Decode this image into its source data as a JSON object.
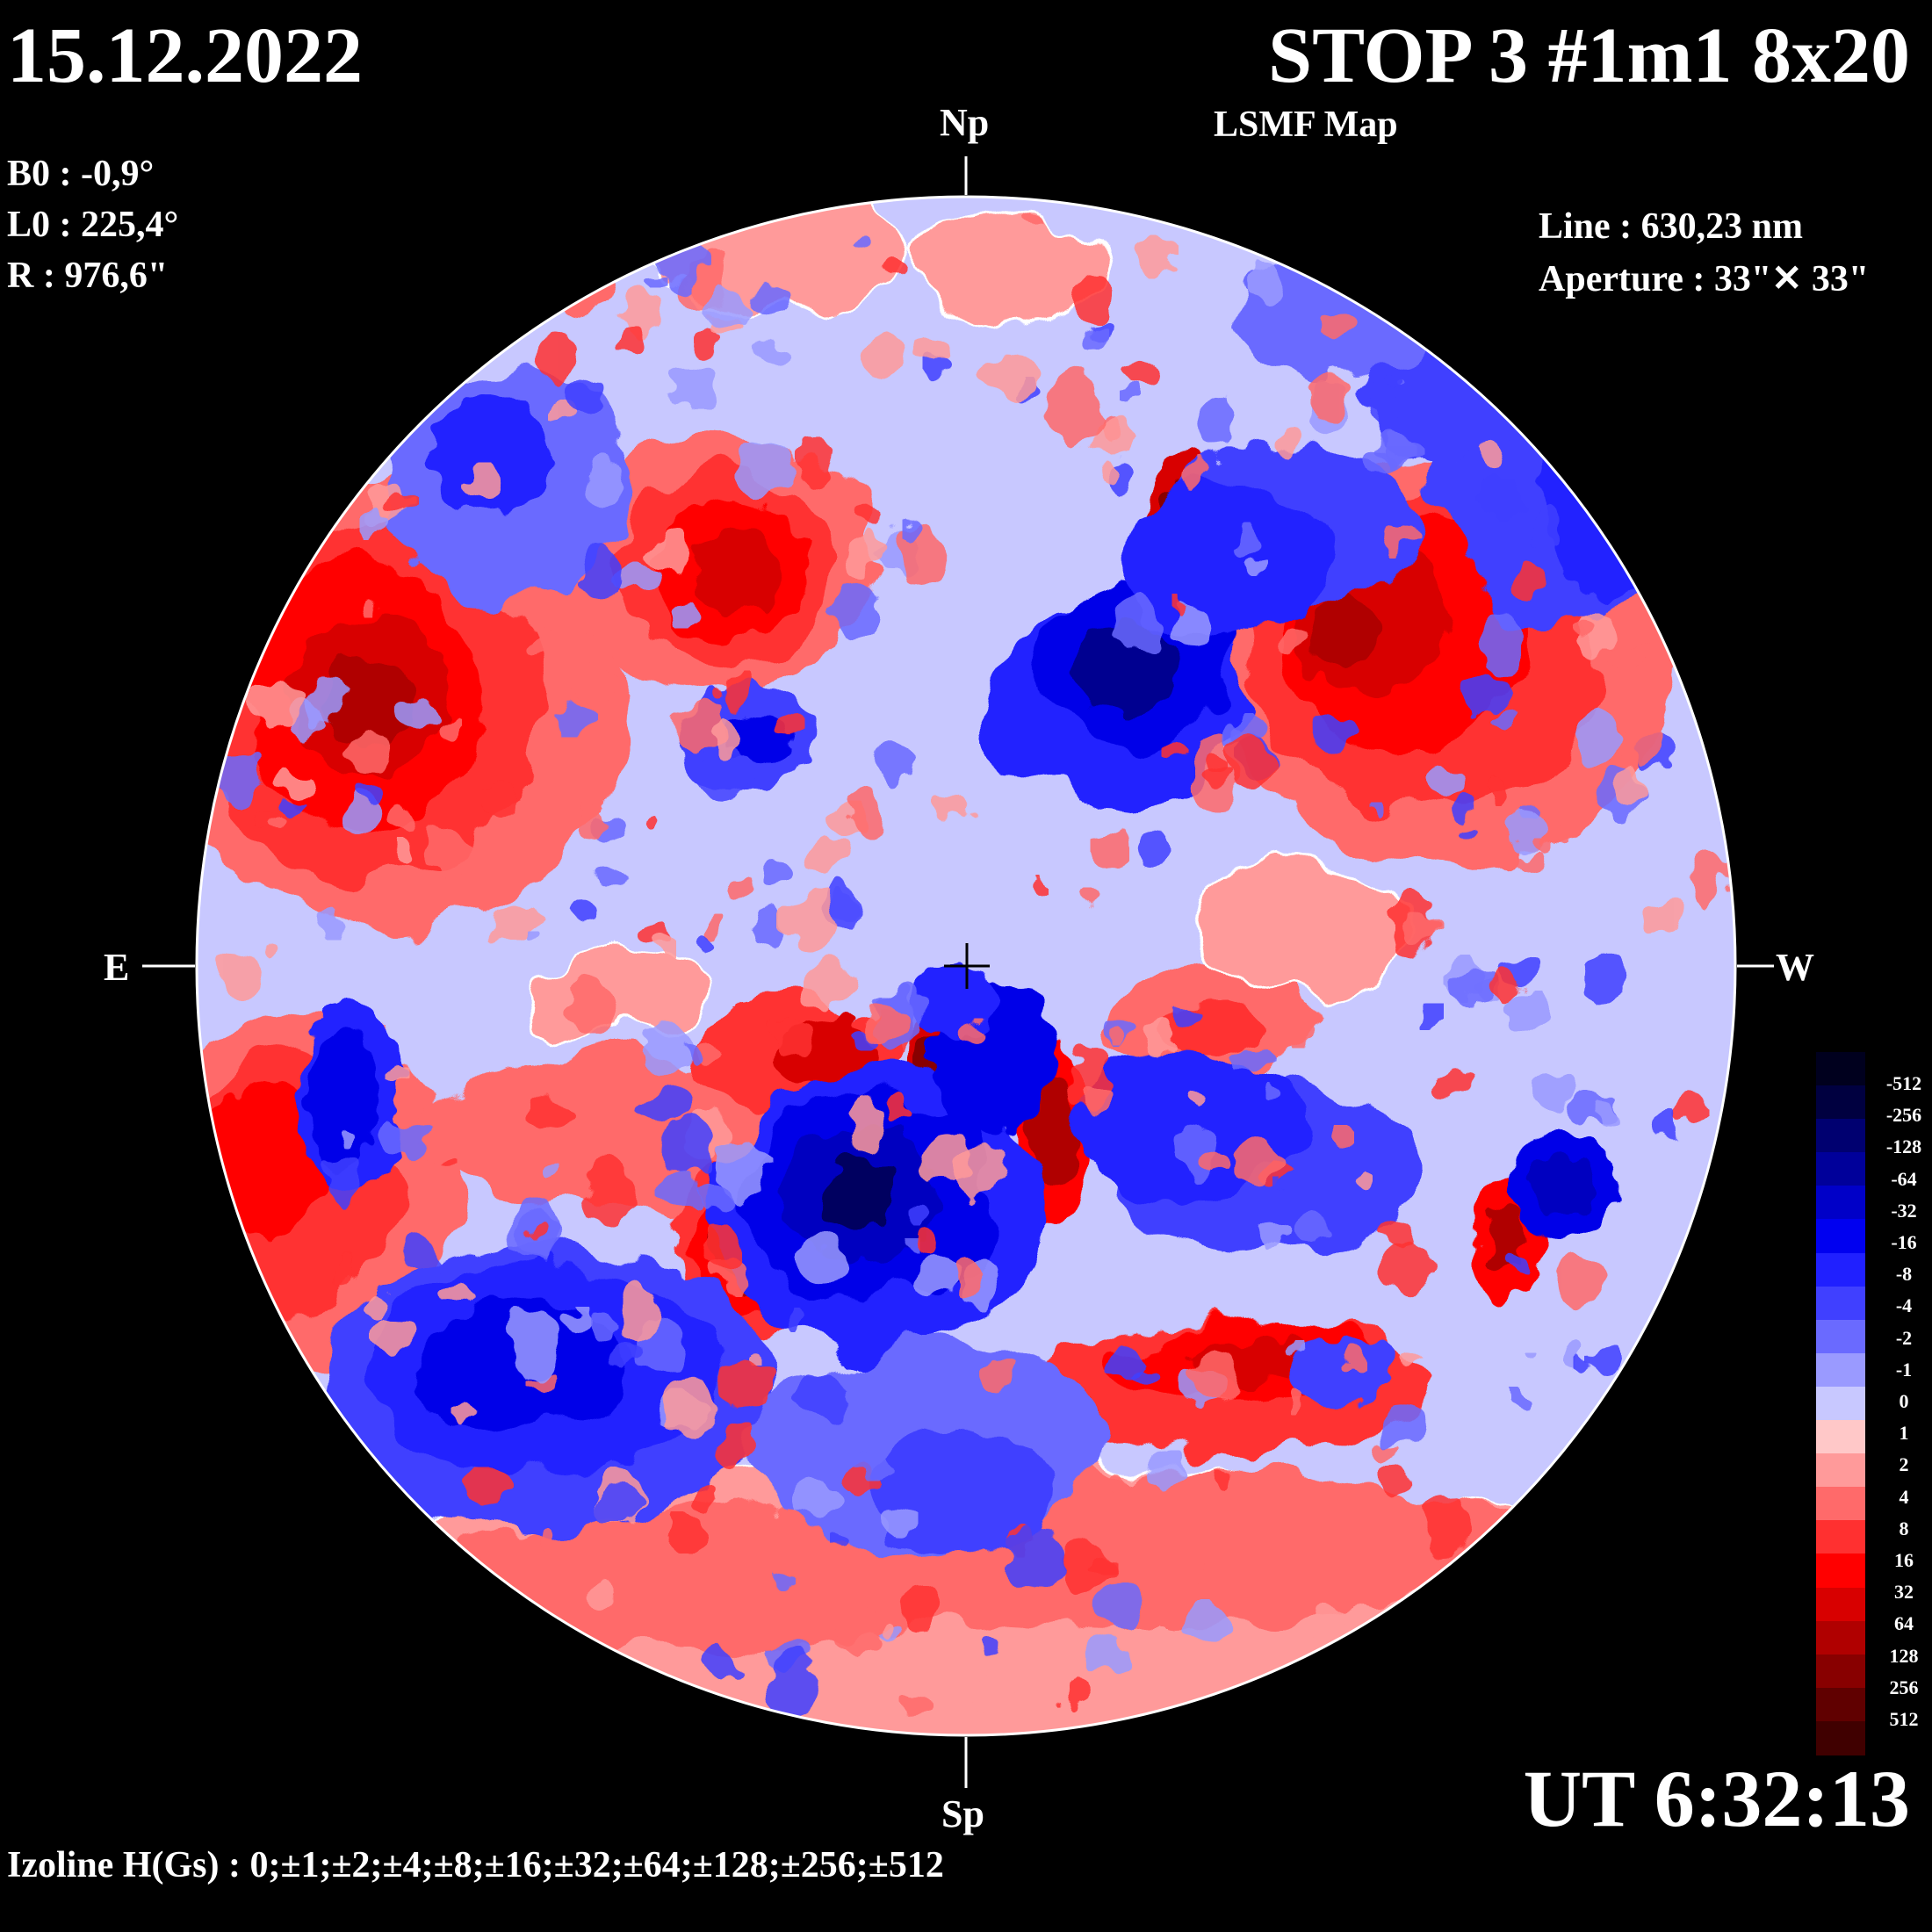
{
  "header": {
    "date": "15.12.2022",
    "title": "STOP 3 #1m1 8x20",
    "subtitle": "LSMF  Map"
  },
  "ephemeris": {
    "b0": "B0 : -0,9°",
    "l0": "L0 : 225,4°",
    "r": "R  : 976,6\""
  },
  "instrument": {
    "line": "Line :  630,23 nm",
    "aperture": "Aperture : 33\"✕ 33\""
  },
  "compass": {
    "north": "Np",
    "south": "Sp",
    "east": "E",
    "west": "W"
  },
  "time": "UT 6:32:13",
  "izoline": "Izoline H(Gs) : 0;±1;±2;±4;±8;±16;±32;±64;±128;±256;±512",
  "colorbar": {
    "labels": [
      "-512",
      "-256",
      "-128",
      "-64",
      "-32",
      "-16",
      "-8",
      "-4",
      "-2",
      "-1",
      "0",
      "1",
      "2",
      "4",
      "8",
      "16",
      "32",
      "64",
      "128",
      "256",
      "512"
    ],
    "colors": [
      "#00001e",
      "#000040",
      "#000070",
      "#00009a",
      "#0000c8",
      "#0000f0",
      "#2020ff",
      "#4040ff",
      "#6a6aff",
      "#9a9aff",
      "#c8c8ff",
      "#ffc8c8",
      "#ff9a9a",
      "#ff6a6a",
      "#ff3030",
      "#ff0000",
      "#d80000",
      "#b00000",
      "#880000",
      "#600000",
      "#400000"
    ]
  },
  "map_colors": {
    "neg": [
      "#c8c8ff",
      "#9a9aff",
      "#6a6aff",
      "#4040ff",
      "#2020ff",
      "#0000e8",
      "#0000c0",
      "#000090",
      "#000060"
    ],
    "pos": [
      "#ffc8c8",
      "#ff9a9a",
      "#ff6a6a",
      "#ff3030",
      "#ff0000",
      "#d80000",
      "#b00000",
      "#880000",
      "#500000"
    ],
    "background": "#000000",
    "neutral_line": "#ffffff"
  }
}
